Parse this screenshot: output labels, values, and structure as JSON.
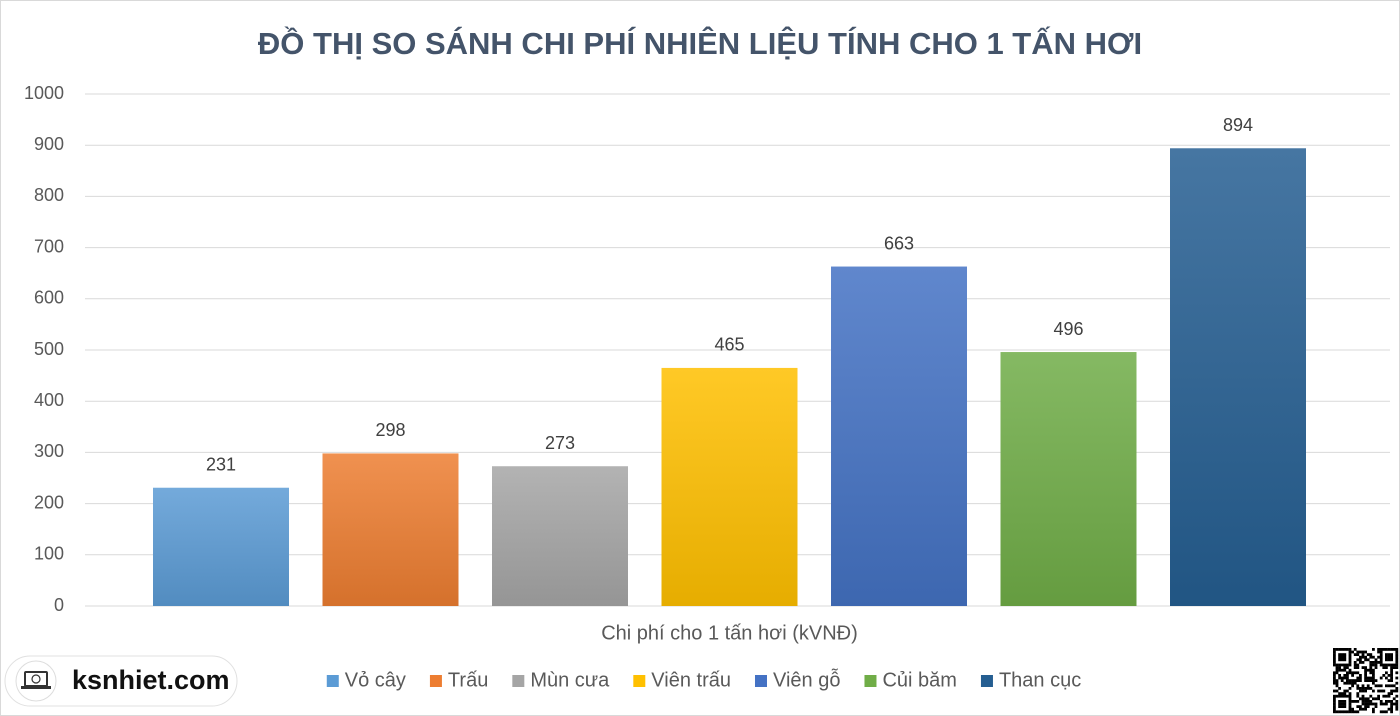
{
  "chart_data": {
    "type": "bar",
    "title": "ĐỒ THỊ SO SÁNH CHI PHÍ NHIÊN LIỆU TÍNH CHO 1 TẤN HƠI",
    "categories": [
      "Chi phí cho 1 tấn hơi (kVNĐ)"
    ],
    "series": [
      {
        "name": "Vỏ cây",
        "color": "#5b9bd5",
        "values": [
          231
        ]
      },
      {
        "name": "Trấu",
        "color": "#ed7d31",
        "values": [
          298
        ]
      },
      {
        "name": "Mùn cưa",
        "color": "#a5a5a5",
        "values": [
          273
        ]
      },
      {
        "name": "Viên trấu",
        "color": "#ffc000",
        "values": [
          465
        ]
      },
      {
        "name": "Viên gỗ",
        "color": "#4472c4",
        "values": [
          663
        ]
      },
      {
        "name": "Củi băm",
        "color": "#70ad47",
        "values": [
          496
        ]
      },
      {
        "name": "Than cục",
        "color": "#255e91",
        "values": [
          894
        ]
      }
    ],
    "ylim": [
      0,
      1000
    ],
    "yticks": [
      0,
      100,
      200,
      300,
      400,
      500,
      600,
      700,
      800,
      900,
      1000
    ],
    "grid": true,
    "data_labels": true,
    "legend": "bottom"
  },
  "watermark": "ksnhiet.com"
}
